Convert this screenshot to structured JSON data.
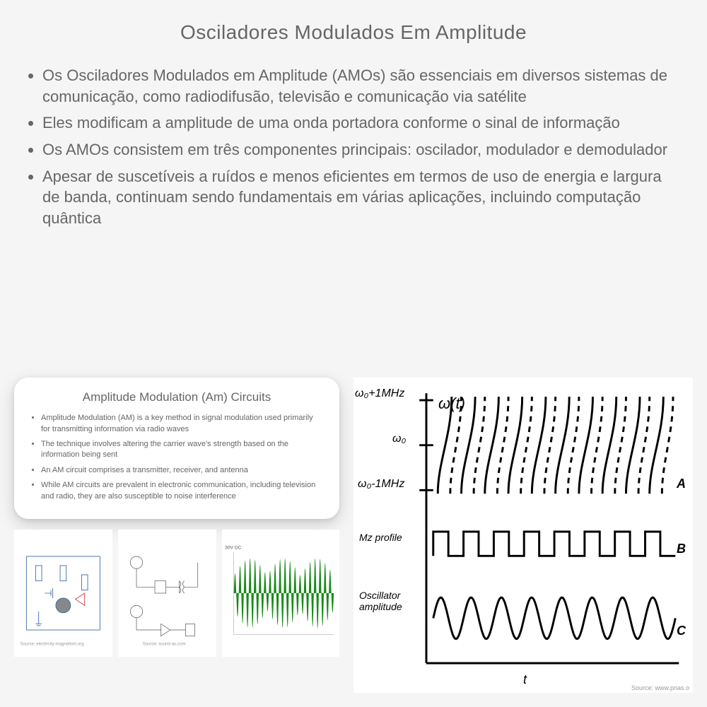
{
  "title": "Osciladores Modulados Em Amplitude",
  "bullets": [
    "Os Osciladores Modulados em Amplitude (AMOs) são essenciais em diversos sistemas de comunicação, como radiodifusão, televisão e comunicação via satélite",
    "Eles modificam a amplitude de uma onda portadora conforme o sinal de informação",
    "Os AMOs consistem em três componentes principais: oscilador, modulador e demodulador",
    "Apesar de suscetíveis a ruídos e menos eficientes em termos de uso de energia e largura de banda, continuam sendo fundamentais em várias aplicações, incluindo computação quântica"
  ],
  "card": {
    "title": "Amplitude Modulation (Am) Circuits",
    "bullets": [
      "Amplitude Modulation (AM) is a key method in signal modulation used primarily for transmitting information via radio waves",
      "The technique involves altering the carrier wave's strength based on the information being sent",
      "An AM circuit comprises a transmitter, receiver, and antenna",
      "While AM circuits are prevalent in electronic communication, including television and radio, they are also susceptible to noise interference"
    ]
  },
  "sources": {
    "left": "Source: electricity-magnetism.org",
    "mid": "Source: sound-au.com",
    "right": "Source: www.pnas.o"
  },
  "chart": {
    "ylabels": {
      "top": "ω₀+1MHz",
      "mid": "ω₀",
      "bot": "ω₀-1MHz",
      "omega_t": "ω(t)"
    },
    "traces": {
      "b_label": "Mz  profile",
      "c_label": "Oscillator amplitude"
    },
    "curve_labels": {
      "a": "A",
      "b": "B",
      "c": "C"
    },
    "xlabel": "t",
    "colors": {
      "axis": "#000000",
      "bg": "#ffffff",
      "am_envelope": "#1a8a1a",
      "circuit_line": "#3366aa",
      "circuit_red": "#cc3333"
    },
    "freq_curves": 10,
    "square_cycles": 8,
    "sine_cycles": 8
  }
}
